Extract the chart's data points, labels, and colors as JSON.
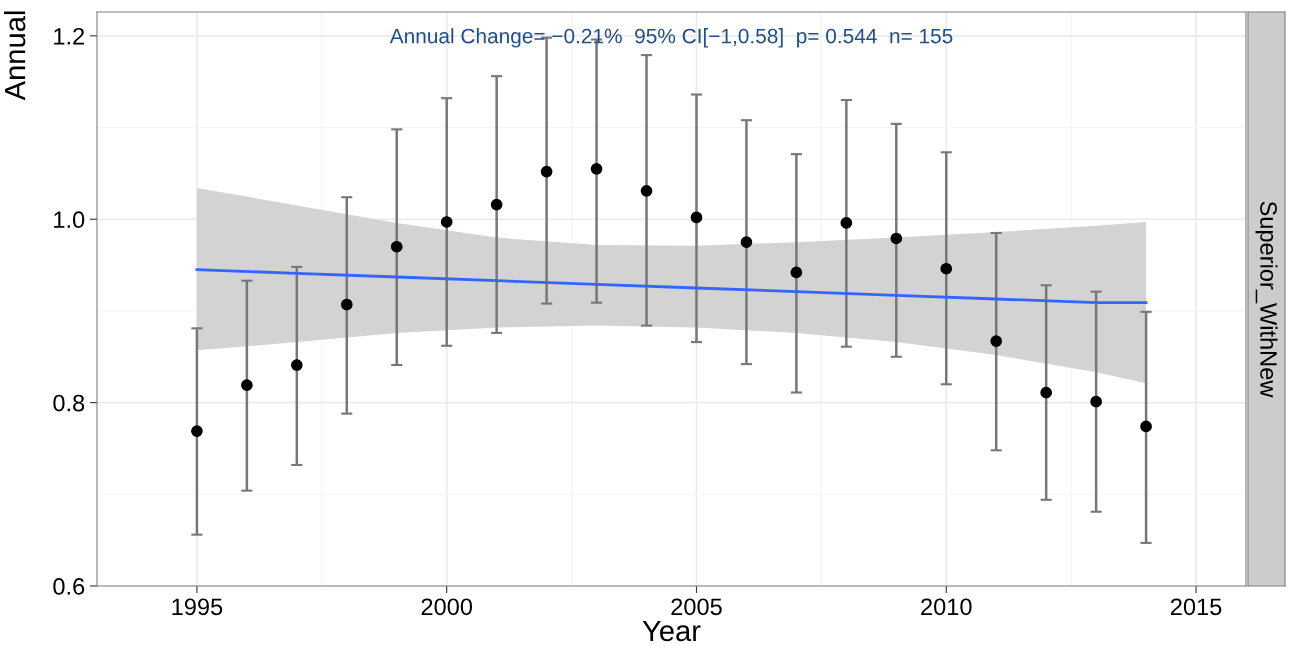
{
  "chart_data": {
    "type": "scatter",
    "xlabel": "Year",
    "ylabel": "Annual",
    "annotations": [
      "Annual Change= −0.21%  95% CI[−1,0.58]  p= 0.544  n= 155",
      "Superior_WithNew"
    ],
    "xlim": [
      1993,
      2016
    ],
    "xticks": [
      1995,
      2000,
      2005,
      2010,
      2015
    ],
    "ylim": [
      0.6,
      1.226
    ],
    "yticks": [
      {
        "value": 0.6,
        "label": "0.6"
      },
      {
        "value": 0.8,
        "label": "0.8"
      },
      {
        "value": 1.0,
        "label": "1.0"
      },
      {
        "value": 1.2,
        "label": "1.2"
      }
    ],
    "grid": true,
    "legend": false,
    "series": [
      {
        "type": "scatter",
        "color": "#000000",
        "marker": "circle",
        "x": [
          1995,
          1996,
          1997,
          1998,
          1999,
          2000,
          2001,
          2002,
          2003,
          2004,
          2005,
          2006,
          2007,
          2008,
          2009,
          2010,
          2011,
          2012,
          2013,
          2014
        ],
        "values": [
          0.769,
          0.819,
          0.841,
          0.907,
          0.97,
          0.997,
          1.016,
          1.052,
          1.055,
          1.031,
          1.002,
          0.975,
          0.942,
          0.996,
          0.979,
          0.946,
          0.867,
          0.811,
          0.801,
          0.774
        ],
        "errors": [
          [
            0.656,
            0.881
          ],
          [
            0.704,
            0.933
          ],
          [
            0.732,
            0.948
          ],
          [
            0.788,
            1.024
          ],
          [
            0.841,
            1.098
          ],
          [
            0.862,
            1.132
          ],
          [
            0.876,
            1.156
          ],
          [
            0.908,
            1.198
          ],
          [
            0.909,
            1.196
          ],
          [
            0.884,
            1.179
          ],
          [
            0.866,
            1.136
          ],
          [
            0.842,
            1.108
          ],
          [
            0.811,
            1.071
          ],
          [
            0.861,
            1.13
          ],
          [
            0.85,
            1.104
          ],
          [
            0.82,
            1.073
          ],
          [
            0.748,
            0.985
          ],
          [
            0.694,
            0.928
          ],
          [
            0.681,
            0.921
          ],
          [
            0.647,
            0.899
          ]
        ]
      },
      {
        "type": "line",
        "color": "#3366ff",
        "line_style": "solid",
        "x": [
          1995,
          1997,
          1999,
          2001,
          2003,
          2005,
          2007,
          2009,
          2011,
          2013,
          2014
        ],
        "values": [
          0.945,
          0.941,
          0.937,
          0.933,
          0.929,
          0.925,
          0.921,
          0.917,
          0.913,
          0.909,
          0.909
        ],
        "lower": [
          0.857,
          0.866,
          0.876,
          0.882,
          0.884,
          0.882,
          0.876,
          0.866,
          0.852,
          0.833,
          0.821
        ],
        "upper": [
          1.034,
          1.015,
          0.996,
          0.98,
          0.972,
          0.971,
          0.975,
          0.98,
          0.986,
          0.993,
          0.997
        ]
      }
    ]
  }
}
